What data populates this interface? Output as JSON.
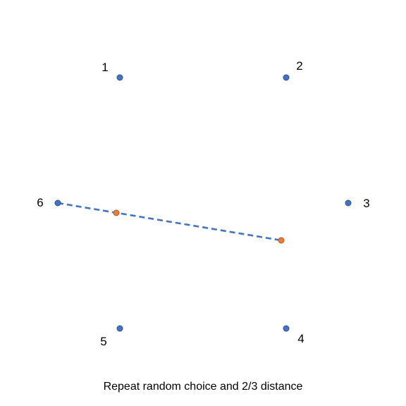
{
  "diagram": {
    "vertices": [
      {
        "label": "1"
      },
      {
        "label": "2"
      },
      {
        "label": "3"
      },
      {
        "label": "4"
      },
      {
        "label": "5"
      },
      {
        "label": "6"
      }
    ],
    "caption": "Repeat random choice and 2/3 distance",
    "colors": {
      "vertex": "#4472C4",
      "vertex_stroke": "#2F528F",
      "point": "#ED7D31",
      "point_stroke": "#AE5A21",
      "segment": "#4472C4"
    }
  }
}
